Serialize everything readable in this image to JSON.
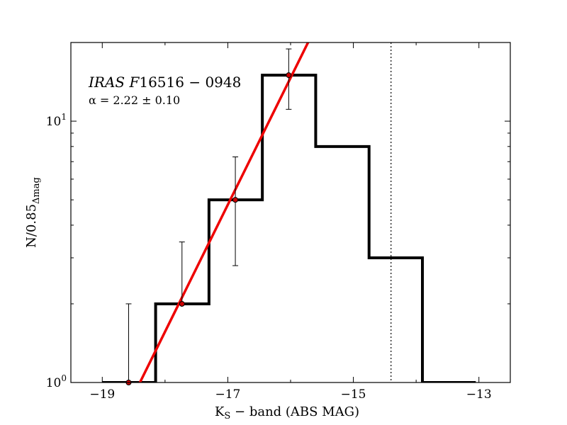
{
  "chart_data": {
    "type": "histogram",
    "title": "",
    "xlabel": "K_S − band (ABS MAG)",
    "xlabel_main": "K",
    "xlabel_sub": "S",
    "xlabel_rest": " − band (ABS MAG)",
    "ylabel_main": "N/0.85",
    "ylabel_sub": "Δmag",
    "xlim": [
      -19.5,
      -12.5
    ],
    "ylim": [
      1,
      20
    ],
    "yscale": "log",
    "xticks": [
      -19,
      -17,
      -15,
      -13
    ],
    "xtick_labels": [
      "−19",
      "−17",
      "−15",
      "−13"
    ],
    "yticks": [
      1,
      10
    ],
    "ytick_labels": [
      {
        "base": "10",
        "exp": "0"
      },
      {
        "base": "10",
        "exp": "1"
      }
    ],
    "annotation": {
      "object": "IRAS F16516 − 0948",
      "object_italic": "IRAS F",
      "object_roman": "16516 − 0948",
      "alpha": "α  =  2.22 ± 0.10"
    },
    "histogram": {
      "bin_edges": [
        -19.0,
        -18.15,
        -17.3,
        -16.45,
        -15.6,
        -14.75,
        -13.9,
        -13.05
      ],
      "counts": [
        1,
        2,
        5,
        15,
        8,
        3,
        1
      ],
      "color": "#000000"
    },
    "data_points": {
      "x": [
        -18.58,
        -17.73,
        -16.88,
        -16.03
      ],
      "y": [
        1,
        2,
        5,
        15
      ],
      "yerr_lower": [
        0,
        0,
        2.2,
        3.9
      ],
      "yerr_upper": [
        1,
        1.45,
        2.3,
        3.9
      ],
      "color": "#cc0000"
    },
    "fit_line": {
      "x": [
        -18.4,
        -15.7
      ],
      "y": [
        1,
        20.5
      ],
      "color": "#ee0000"
    },
    "completeness_limit": {
      "x": -14.4,
      "style": "dotted"
    }
  }
}
